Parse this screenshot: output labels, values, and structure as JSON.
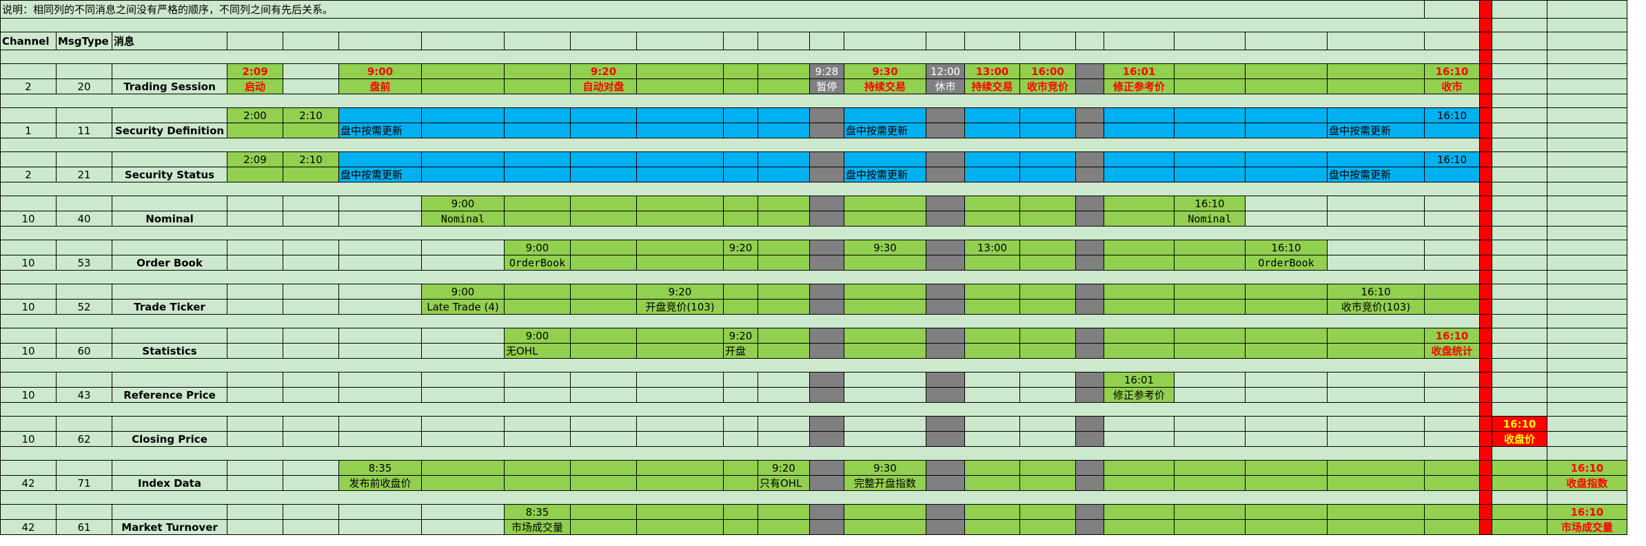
{
  "note": "说明：相同列的不同消息之间没有严格的顺序，不同列之间有先后关系。",
  "headers": {
    "channel": "Channel",
    "msgtype": "MsgType",
    "message": "消息"
  },
  "rows": [
    {
      "channel": "2",
      "msgtype": "20",
      "name": "Trading Session"
    },
    {
      "channel": "1",
      "msgtype": "11",
      "name": "Security Definition"
    },
    {
      "channel": "2",
      "msgtype": "21",
      "name": "Security Status"
    },
    {
      "channel": "10",
      "msgtype": "40",
      "name": "Nominal"
    },
    {
      "channel": "10",
      "msgtype": "53",
      "name": "Order Book"
    },
    {
      "channel": "10",
      "msgtype": "52",
      "name": "Trade Ticker"
    },
    {
      "channel": "10",
      "msgtype": "60",
      "name": "Statistics"
    },
    {
      "channel": "10",
      "msgtype": "43",
      "name": "Reference Price"
    },
    {
      "channel": "10",
      "msgtype": "62",
      "name": "Closing Price"
    },
    {
      "channel": "42",
      "msgtype": "71",
      "name": "Index Data"
    },
    {
      "channel": "42",
      "msgtype": "61",
      "name": "Market Turnover"
    }
  ],
  "trading_session": {
    "startup_time": "2:09",
    "startup_label": "启动",
    "preopen_time": "9:00",
    "preopen_label": "盘前",
    "auto_match_time": "9:20",
    "auto_match_label": "自动对盘",
    "pause_time": "9:28",
    "pause_label": "暂停",
    "continuous_time": "9:30",
    "continuous_label": "持续交易",
    "lunch_time": "12:00",
    "lunch_label": "休市",
    "continuous2_time": "13:00",
    "continuous2_label": "持续交易",
    "closing_auction_time": "16:00",
    "closing_auction_label": "收市竞价",
    "ref_price_time": "16:01",
    "ref_price_label": "修正参考价",
    "close_time": "16:10",
    "close_label": "收市"
  },
  "security_definition": {
    "t1": "2:00",
    "t2": "2:10",
    "update1": "盘中按需更新",
    "update2": "盘中按需更新",
    "update3": "盘中按需更新",
    "t_end": "16:10"
  },
  "security_status": {
    "t1": "2:09",
    "t2": "2:10",
    "update1": "盘中按需更新",
    "update2": "盘中按需更新",
    "update3": "盘中按需更新",
    "t_end": "16:10"
  },
  "nominal": {
    "t1": "9:00",
    "l1": "Nominal",
    "t2": "16:10",
    "l2": "Nominal"
  },
  "order_book": {
    "t1": "9:00",
    "l1": "OrderBook",
    "t2": "9:20",
    "t3": "9:30",
    "t4": "13:00",
    "t5": "16:10",
    "l5": "OrderBook"
  },
  "trade_ticker": {
    "t1": "9:00",
    "l1": "Late Trade (4)",
    "t2": "9:20",
    "l2": "开盘竞价(103)",
    "t3": "16:10",
    "l3": "收市竞价(103)"
  },
  "statistics": {
    "t1": "9:00",
    "l1": "无OHL",
    "t2": "9:20",
    "l2": "开盘",
    "t3": "16:10",
    "l3": "收盘统计"
  },
  "reference_price": {
    "t1": "16:01",
    "l1": "修正参考价"
  },
  "closing_price": {
    "t1": "16:10",
    "l1": "收盘价"
  },
  "index_data": {
    "t1": "8:35",
    "l1": "发布前收盘价",
    "t2": "9:20",
    "l2": "只有OHL",
    "t3": "9:30",
    "l3": "完整开盘指数",
    "t4": "16:10",
    "l4": "收盘指数"
  },
  "market_turnover": {
    "t1": "8:35",
    "l1": "市场成交量",
    "t2": "16:10",
    "l2": "市场成交量"
  },
  "colors": {
    "background": "#cde9cd",
    "active": "#92d050",
    "update": "#00b0f0",
    "pause": "#808080",
    "marker": "#ff0000"
  }
}
